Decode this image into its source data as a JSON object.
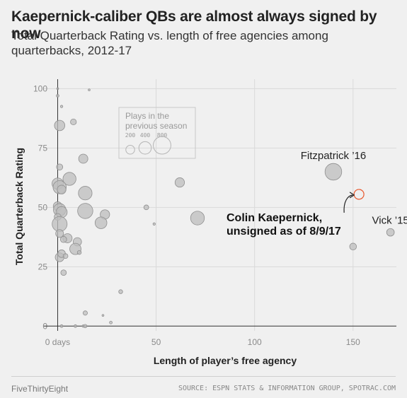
{
  "header": {
    "title": "Kaepernick-caliber QBs are almost always signed by now",
    "subtitle": "Total Quarterback Rating vs. length of free agencies among quarterbacks, 2012-17"
  },
  "footer": {
    "brand": "FiveThirtyEight",
    "source": "SOURCE: ESPN STATS & INFORMATION GROUP, SPOTRAC.COM"
  },
  "colors": {
    "background": "#f0f0f0",
    "gridline": "#d9d9d9",
    "point_fill": "#bdbdbd",
    "point_stroke": "#8f8f8f",
    "highlight": "#e8582d"
  },
  "chart_data": {
    "type": "scatter",
    "xlabel": "Length of player’s free agency",
    "ylabel": "Total Quarterback Rating",
    "xlim": [
      -7,
      172
    ],
    "ylim": [
      -2,
      104
    ],
    "x_ticks": [
      0,
      50,
      100,
      150
    ],
    "x_tick_labels": [
      "0 days",
      "50",
      "100",
      "150"
    ],
    "y_ticks": [
      0,
      25,
      50,
      75,
      100
    ],
    "y_tick_labels": [
      "0",
      "25",
      "50",
      "75",
      "100"
    ],
    "grid": true,
    "size_legend": {
      "title_line1": "Plays in the",
      "title_line2": "previous season",
      "entries": [
        {
          "label": "200",
          "plays": 200
        },
        {
          "label": "400",
          "plays": 400
        },
        {
          "label": "800",
          "plays": 800
        }
      ]
    },
    "points": [
      {
        "x": 0,
        "y": 100,
        "plays": 10
      },
      {
        "x": 16,
        "y": 99.5,
        "plays": 10
      },
      {
        "x": 0,
        "y": 97,
        "plays": 20
      },
      {
        "x": 2,
        "y": 92.5,
        "plays": 15
      },
      {
        "x": 1,
        "y": 84.5,
        "plays": 280
      },
      {
        "x": 8,
        "y": 86,
        "plays": 90
      },
      {
        "x": 13,
        "y": 70.5,
        "plays": 220
      },
      {
        "x": 1,
        "y": 67,
        "plays": 100
      },
      {
        "x": 6,
        "y": 62,
        "plays": 440
      },
      {
        "x": 0,
        "y": 60,
        "plays": 330
      },
      {
        "x": 1,
        "y": 58.5,
        "plays": 450
      },
      {
        "x": 2,
        "y": 57.5,
        "plays": 200
      },
      {
        "x": 14,
        "y": 56,
        "plays": 480
      },
      {
        "x": 62,
        "y": 60.5,
        "plays": 230
      },
      {
        "x": 0,
        "y": 50.5,
        "plays": 200
      },
      {
        "x": 1,
        "y": 49,
        "plays": 400
      },
      {
        "x": 2,
        "y": 48,
        "plays": 320
      },
      {
        "x": 14,
        "y": 48.5,
        "plays": 600
      },
      {
        "x": 24,
        "y": 47,
        "plays": 230
      },
      {
        "x": 45,
        "y": 50,
        "plays": 60
      },
      {
        "x": 0,
        "y": 46,
        "plays": 120
      },
      {
        "x": 1,
        "y": 43,
        "plays": 580
      },
      {
        "x": 22,
        "y": 43.5,
        "plays": 360
      },
      {
        "x": 49,
        "y": 43,
        "plays": 15
      },
      {
        "x": 71,
        "y": 45.5,
        "plays": 490
      },
      {
        "x": 1,
        "y": 39,
        "plays": 160
      },
      {
        "x": 5,
        "y": 37,
        "plays": 220
      },
      {
        "x": 3,
        "y": 36.5,
        "plays": 100
      },
      {
        "x": 10,
        "y": 35.5,
        "plays": 180
      },
      {
        "x": 9,
        "y": 32.5,
        "plays": 330
      },
      {
        "x": 11,
        "y": 31,
        "plays": 40
      },
      {
        "x": 1,
        "y": 29,
        "plays": 200
      },
      {
        "x": 2,
        "y": 30.5,
        "plays": 150
      },
      {
        "x": 4,
        "y": 29.5,
        "plays": 60
      },
      {
        "x": 3,
        "y": 22.5,
        "plays": 80
      },
      {
        "x": 32,
        "y": 14.5,
        "plays": 40
      },
      {
        "x": 14,
        "y": 5.5,
        "plays": 50
      },
      {
        "x": 23,
        "y": 4.5,
        "plays": 10
      },
      {
        "x": 27,
        "y": 1.5,
        "plays": 20
      },
      {
        "x": 2,
        "y": 0,
        "plays": 20
      },
      {
        "x": 9,
        "y": 0,
        "plays": 20
      },
      {
        "x": 13,
        "y": 0,
        "plays": 15
      },
      {
        "x": 14,
        "y": 0,
        "plays": 30
      },
      {
        "x": 140,
        "y": 65,
        "plays": 720,
        "label": "Fitzpatrick ’16"
      },
      {
        "x": 150,
        "y": 33.5,
        "plays": 120
      },
      {
        "x": 169,
        "y": 39.5,
        "plays": 150,
        "label": "Vick ’15"
      }
    ],
    "highlight": {
      "x": 153,
      "y": 55.5,
      "plays": 250,
      "label_line1": "Colin Kaepernick,",
      "label_line2": "unsigned as of 8/9/17"
    }
  }
}
